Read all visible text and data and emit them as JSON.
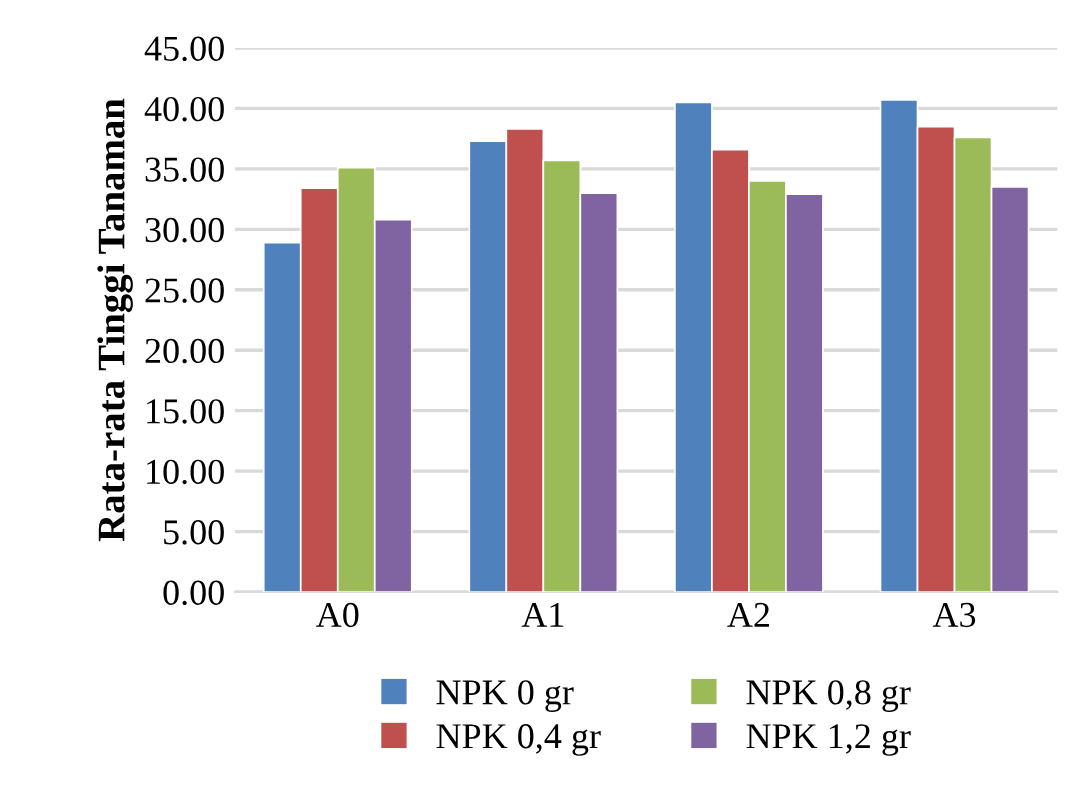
{
  "chart_data": {
    "type": "bar",
    "ylabel": "Rata-rata Tinggi Tanaman",
    "categories": [
      "A0",
      "A1",
      "A2",
      "A3"
    ],
    "series": [
      {
        "name": "NPK 0 gr",
        "color": "#4f81bd",
        "values": [
          28.9,
          37.3,
          40.5,
          40.7
        ]
      },
      {
        "name": "NPK 0,4 gr",
        "color": "#c0504d",
        "values": [
          33.4,
          38.3,
          36.6,
          38.5
        ]
      },
      {
        "name": "NPK 0,8 gr",
        "color": "#9bbb59",
        "values": [
          35.1,
          35.7,
          34.0,
          37.6
        ]
      },
      {
        "name": "NPK 1,2 gr",
        "color": "#8064a2",
        "values": [
          30.8,
          33.0,
          32.9,
          33.5
        ]
      }
    ],
    "ylim": [
      0,
      45
    ],
    "yticks": [
      {
        "value": 0,
        "label": "0.00"
      },
      {
        "value": 5,
        "label": "5.00"
      },
      {
        "value": 10,
        "label": "10.00"
      },
      {
        "value": 15,
        "label": "15.00"
      },
      {
        "value": 20,
        "label": "20.00"
      },
      {
        "value": 25,
        "label": "25.00"
      },
      {
        "value": 30,
        "label": "30.00"
      },
      {
        "value": 35,
        "label": "35.00"
      },
      {
        "value": 40,
        "label": "40.00"
      },
      {
        "value": 45,
        "label": "45.00"
      }
    ],
    "grid": "y",
    "legend": "bottom"
  }
}
